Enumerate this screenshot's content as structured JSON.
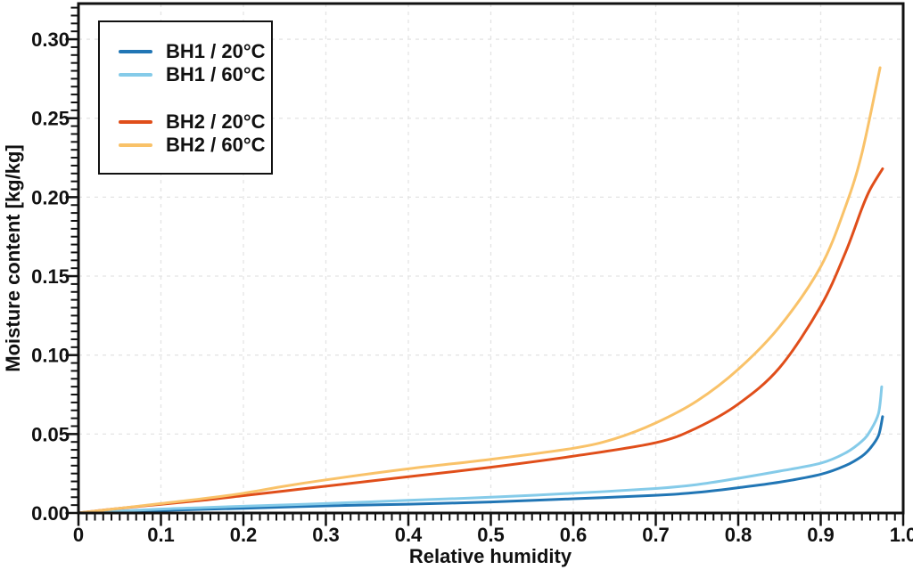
{
  "figure": {
    "background": "#ffffff",
    "frame_color": "#111111",
    "grid_color": "#e4e4e4",
    "text_color": "#111111"
  },
  "chart_data": {
    "type": "line",
    "title": "",
    "xlabel": "Relative humidity",
    "ylabel": "Moisture content [kg/kg]",
    "xlim": [
      0,
      1.0
    ],
    "ylim": [
      0,
      0.3226
    ],
    "x_major_ticks": [
      0,
      0.1,
      0.2,
      0.3,
      0.4,
      0.5,
      0.6,
      0.7,
      0.8,
      0.9,
      1.0
    ],
    "x_tick_labels": [
      "0",
      "0.1",
      "0.2",
      "0.3",
      "0.4",
      "0.5",
      "0.6",
      "0.7",
      "0.8",
      "0.9",
      "1.0"
    ],
    "y_major_ticks": [
      0,
      0.05,
      0.1,
      0.15,
      0.2,
      0.25,
      0.3
    ],
    "y_tick_labels": [
      "0.00",
      "0.05",
      "0.10",
      "0.15",
      "0.20",
      "0.25",
      "0.30"
    ],
    "x_minor_step": 0.01,
    "y_minor_step": 0.005,
    "grid": "dashed-major-both-axes",
    "legend_position": "upper-left",
    "legend_groups": [
      [
        0,
        1
      ],
      [
        2,
        3
      ]
    ],
    "series": [
      {
        "label": "BH1 / 20°C",
        "color": "#2176b5",
        "points": [
          [
            0,
            0
          ],
          [
            0.05,
            0.0008
          ],
          [
            0.1,
            0.0016
          ],
          [
            0.15,
            0.0023
          ],
          [
            0.2,
            0.003
          ],
          [
            0.3,
            0.0045
          ],
          [
            0.4,
            0.0056
          ],
          [
            0.5,
            0.007
          ],
          [
            0.6,
            0.009
          ],
          [
            0.7,
            0.0112
          ],
          [
            0.75,
            0.013
          ],
          [
            0.8,
            0.016
          ],
          [
            0.85,
            0.0195
          ],
          [
            0.9,
            0.0245
          ],
          [
            0.93,
            0.03
          ],
          [
            0.95,
            0.036
          ],
          [
            0.96,
            0.041
          ],
          [
            0.97,
            0.049
          ],
          [
            0.975,
            0.061
          ]
        ]
      },
      {
        "label": "BH1 / 60°C",
        "color": "#85cbe9",
        "points": [
          [
            0,
            0
          ],
          [
            0.05,
            0.0013
          ],
          [
            0.1,
            0.0025
          ],
          [
            0.15,
            0.0034
          ],
          [
            0.2,
            0.0043
          ],
          [
            0.3,
            0.006
          ],
          [
            0.4,
            0.008
          ],
          [
            0.5,
            0.01
          ],
          [
            0.6,
            0.0125
          ],
          [
            0.7,
            0.0155
          ],
          [
            0.75,
            0.018
          ],
          [
            0.8,
            0.022
          ],
          [
            0.85,
            0.0265
          ],
          [
            0.9,
            0.0315
          ],
          [
            0.93,
            0.038
          ],
          [
            0.95,
            0.0455
          ],
          [
            0.96,
            0.052
          ],
          [
            0.97,
            0.063
          ],
          [
            0.974,
            0.08
          ]
        ]
      },
      {
        "label": "BH2 / 20°C",
        "color": "#e04e1a",
        "points": [
          [
            0,
            0
          ],
          [
            0.05,
            0.003
          ],
          [
            0.1,
            0.0055
          ],
          [
            0.15,
            0.008
          ],
          [
            0.2,
            0.011
          ],
          [
            0.25,
            0.014
          ],
          [
            0.3,
            0.017
          ],
          [
            0.4,
            0.023
          ],
          [
            0.5,
            0.029
          ],
          [
            0.6,
            0.036
          ],
          [
            0.7,
            0.0445
          ],
          [
            0.75,
            0.054
          ],
          [
            0.8,
            0.069
          ],
          [
            0.85,
            0.092
          ],
          [
            0.9,
            0.131
          ],
          [
            0.93,
            0.165
          ],
          [
            0.95,
            0.193
          ],
          [
            0.96,
            0.205
          ],
          [
            0.975,
            0.218
          ]
        ]
      },
      {
        "label": "BH2 / 60°C",
        "color": "#f9c269",
        "points": [
          [
            0,
            0
          ],
          [
            0.05,
            0.003
          ],
          [
            0.1,
            0.006
          ],
          [
            0.15,
            0.009
          ],
          [
            0.2,
            0.0125
          ],
          [
            0.25,
            0.017
          ],
          [
            0.3,
            0.021
          ],
          [
            0.4,
            0.028
          ],
          [
            0.5,
            0.034
          ],
          [
            0.6,
            0.041
          ],
          [
            0.65,
            0.047
          ],
          [
            0.7,
            0.057
          ],
          [
            0.75,
            0.071
          ],
          [
            0.8,
            0.091
          ],
          [
            0.85,
            0.118
          ],
          [
            0.9,
            0.156
          ],
          [
            0.93,
            0.194
          ],
          [
            0.95,
            0.228
          ],
          [
            0.972,
            0.282
          ]
        ]
      }
    ]
  }
}
